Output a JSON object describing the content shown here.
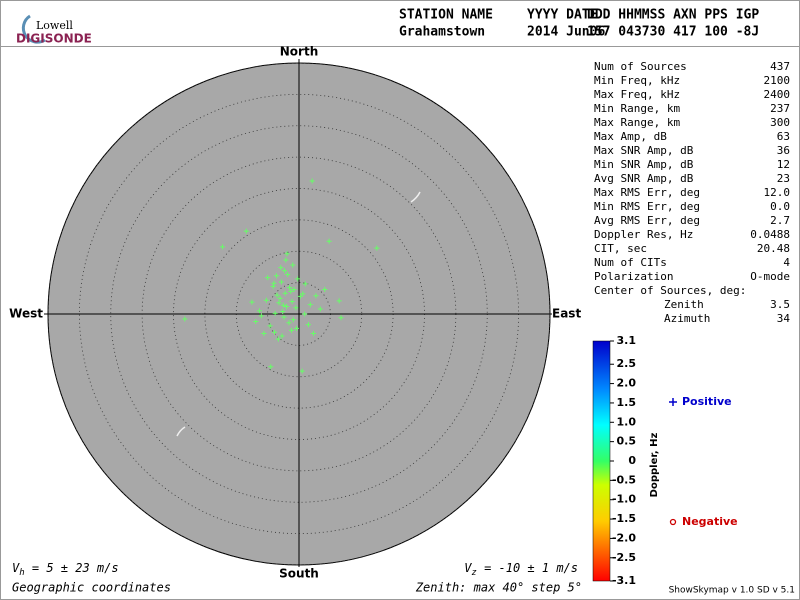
{
  "logo": {
    "line1": "Lowell",
    "line2": "DIGISONDE"
  },
  "header": {
    "labels": [
      "STATION NAME",
      "YYYY DATE",
      "DDD HHMMSS AXN PPS IGP"
    ],
    "values": [
      "Grahamstown",
      "2014 Jun06",
      "157 043730 417 100 -8J"
    ]
  },
  "chart_data": {
    "type": "skymap",
    "directions": {
      "north": "North",
      "east": "East",
      "south": "South",
      "west": "West"
    },
    "rlim": [
      0,
      40
    ],
    "rings": [
      5,
      10,
      15,
      20,
      25,
      30,
      35,
      40
    ],
    "color": "#66ff66",
    "points": {
      "x": [
        2.1,
        -8.4,
        -12.2,
        12.4,
        -18.2,
        6.7,
        0.5,
        -4.5,
        6.4,
        4.8,
        -2.2,
        -1.5,
        -3.0,
        -0.8,
        -2.8,
        -1.1,
        -3.5,
        -2.0,
        0.2,
        -4.1,
        -1.8,
        -2.6,
        -0.5,
        -3.2,
        -1.3,
        1.0,
        -5.2,
        -2.4,
        -0.2,
        -3.8,
        1.8,
        -6.3,
        -2.9,
        0.6,
        -1.6,
        -4.6,
        2.7,
        -2.1,
        -0.9,
        -3.6,
        -6.9,
        -5.6,
        0.9,
        -1.2,
        -2.7,
        3.4,
        -7.5,
        -4.0,
        1.5,
        -3.3,
        -1.9,
        -0.4,
        -5.0,
        -2.3,
        4.1,
        -6.0,
        -1.0,
        -3.9,
        2.3,
        -2.5
      ],
      "y": [
        21.2,
        13.2,
        10.7,
        10.5,
        -0.8,
        -0.6,
        -9.1,
        -8.4,
        2.1,
        11.6,
        3.3,
        4.2,
        2.5,
        3.9,
        5.1,
        2.0,
        3.0,
        1.2,
        2.8,
        4.4,
        6.3,
        0.4,
        1.0,
        1.8,
        3.6,
        4.8,
        2.2,
        -0.5,
        5.6,
        0.1,
        1.5,
        0.5,
        7.4,
        3.2,
        -1.4,
        -1.9,
        2.9,
        8.6,
        -0.9,
        6.1,
        -1.2,
        -3.1,
        0.0,
        -2.6,
        -3.5,
        0.8,
        1.9,
        4.9,
        -1.7,
        -4.0,
        9.6,
        -2.3,
        5.8,
        6.9,
        3.9,
        -0.3,
        7.8,
        -2.9,
        -3.1,
        1.4
      ]
    },
    "colorbar": {
      "label": "Doppler, Hz",
      "lim": [
        -3.1,
        3.1
      ],
      "ticks": [
        3.1,
        2.5,
        {
          "value": 2,
          "label": "2.0"
        },
        1.5,
        {
          "value": 1,
          "label": "1.0"
        },
        0.5,
        0,
        -0.5,
        {
          "value": -1,
          "label": "-1.0"
        },
        -1.5,
        {
          "value": -2,
          "label": "-2.0"
        },
        -2.5,
        -3.1
      ]
    },
    "legend": {
      "positive": "Positive",
      "negative": "Negative"
    }
  },
  "table": {
    "rows": [
      [
        "Num of Sources",
        "437"
      ],
      [
        "Min Freq, kHz",
        "2100"
      ],
      [
        "Max Freq, kHz",
        "2400"
      ],
      [
        "Min Range, km",
        "237"
      ],
      [
        "Max Range, km",
        "300"
      ],
      [
        "Max Amp, dB",
        "63"
      ],
      [
        "Max SNR Amp, dB",
        "36"
      ],
      [
        "Min SNR Amp, dB",
        "12"
      ],
      [
        "Avg SNR Amp, dB",
        "23"
      ],
      [
        "Max RMS Err, deg",
        "12.0"
      ],
      [
        "Min RMS Err, deg",
        "0.0"
      ],
      [
        "Avg RMS Err, deg",
        "2.7"
      ],
      [
        "Doppler Res, Hz",
        "0.0488"
      ],
      [
        "CIT, sec",
        "20.48"
      ],
      [
        "Num of CITs",
        "4"
      ],
      [
        "Polarization",
        "O-mode"
      ],
      [
        "Center of Sources, deg:"
      ],
      [
        "Zenith",
        "3.5"
      ],
      [
        "Azimuth",
        "34"
      ]
    ]
  },
  "footer": {
    "vh": {
      "symbol": "V",
      "sub": "h",
      "text": " = 5 ± 23 m/s"
    },
    "vz": {
      "symbol": "V",
      "sub": "z",
      "text": " = -10 ± 1 m/s"
    },
    "coords": "Geographic coordinates",
    "zenith": "Zenith: max 40°  step 5°",
    "version": "ShowSkymap v 1.0  SD v 5.1"
  }
}
